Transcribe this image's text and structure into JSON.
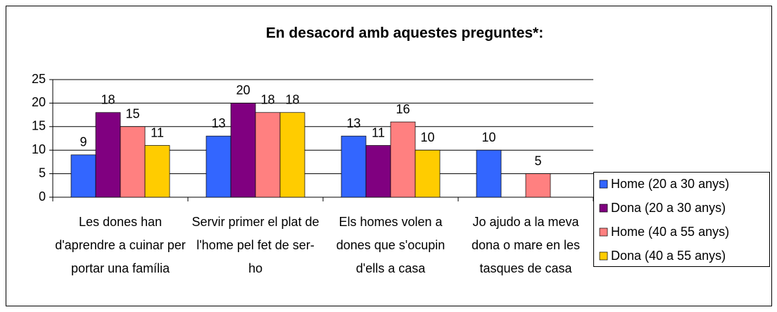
{
  "chart_data": {
    "type": "bar",
    "title": "En desacord amb aquestes preguntes*:",
    "categories": [
      "Les dones han d'aprendre a cuinar per portar una família",
      "Servir primer el plat de l'home pel fet de ser-ho",
      "Els homes volen a dones que s'ocupin d'ells a casa",
      "Jo ajudo a la meva dona o mare en les tasques de casa"
    ],
    "series": [
      {
        "name": "Home (20 a 30 anys)",
        "color": "#3366ff",
        "values": [
          9,
          13,
          13,
          10
        ]
      },
      {
        "name": "Dona (20 a 30 anys)",
        "color": "#800080",
        "values": [
          18,
          20,
          11,
          null
        ]
      },
      {
        "name": "Home (40 a 55 anys)",
        "color": "#ff8080",
        "values": [
          15,
          18,
          16,
          5
        ]
      },
      {
        "name": "Dona (40 a 55 anys)",
        "color": "#ffcc00",
        "values": [
          11,
          18,
          10,
          null
        ]
      }
    ],
    "ylim": [
      0,
      25
    ],
    "yticks": [
      0,
      5,
      10,
      15,
      20,
      25
    ],
    "grid": true,
    "legend": "right"
  }
}
